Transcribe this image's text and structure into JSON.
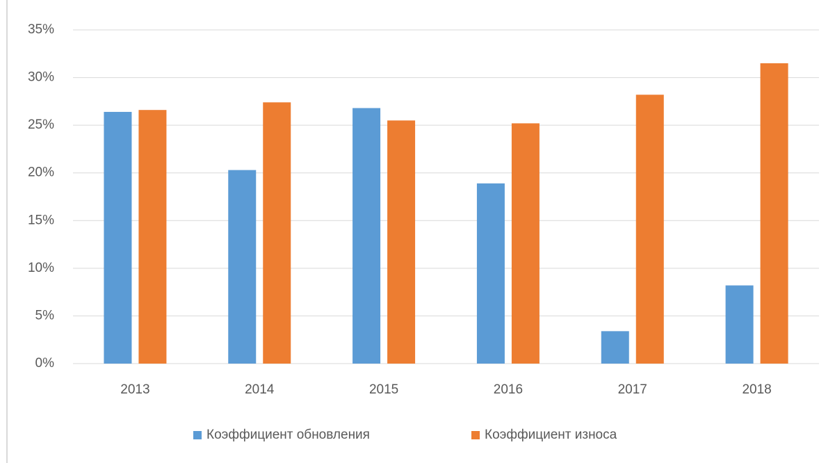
{
  "chart_data": {
    "type": "bar",
    "categories": [
      "2013",
      "2014",
      "2015",
      "2016",
      "2017",
      "2018"
    ],
    "series": [
      {
        "name": "Коэффициент обновления",
        "color": "#5b9bd5",
        "values": [
          26.4,
          20.3,
          26.8,
          18.9,
          3.4,
          8.2
        ]
      },
      {
        "name": "Коэффициент износа",
        "color": "#ed7d31",
        "values": [
          26.6,
          27.4,
          25.5,
          25.2,
          28.2,
          31.5
        ]
      }
    ],
    "ylim": [
      0,
      35
    ],
    "yticks": [
      {
        "value": 0,
        "label": "0%"
      },
      {
        "value": 5,
        "label": "5%"
      },
      {
        "value": 10,
        "label": "10%"
      },
      {
        "value": 15,
        "label": "15%"
      },
      {
        "value": 20,
        "label": "20%"
      },
      {
        "value": 25,
        "label": "25%"
      },
      {
        "value": 30,
        "label": "30%"
      },
      {
        "value": 35,
        "label": "35%"
      }
    ],
    "grid": true,
    "legend": "bottom"
  }
}
